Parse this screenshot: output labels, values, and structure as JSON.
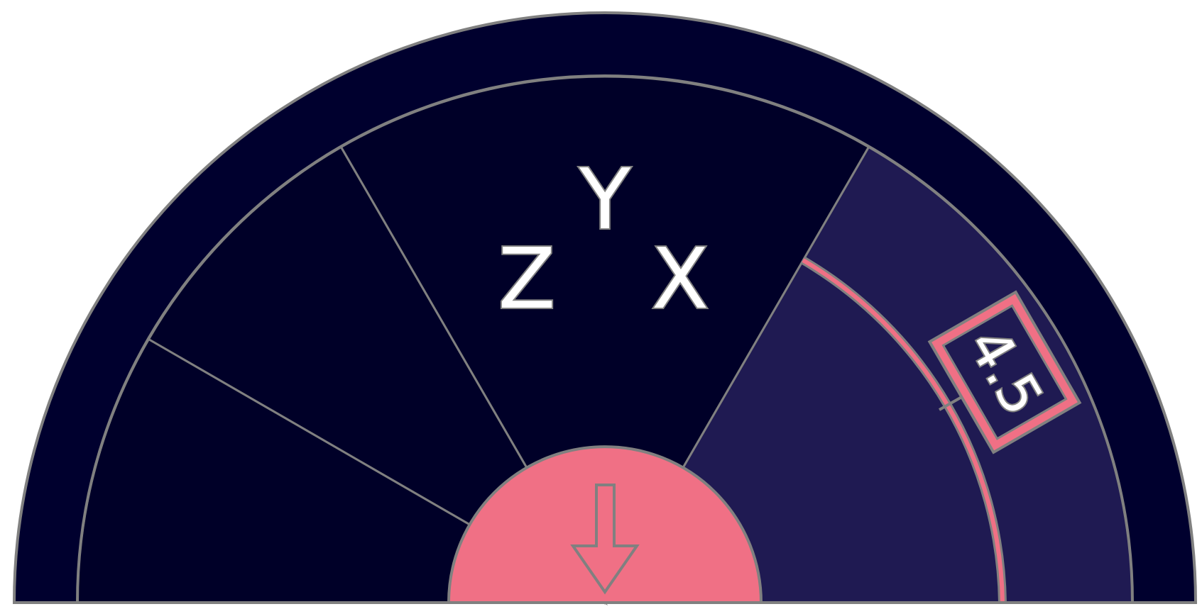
{
  "dial": {
    "axis_labels": [
      "Z",
      "Y",
      "X"
    ],
    "value_label": "4.5",
    "active_segment": "right",
    "center_button_icon": "arrow-down-icon"
  },
  "colors": {
    "outer_ring": "#00002e",
    "segment": "#000028",
    "segment_active": "#1f1a52",
    "accent": "#f07085",
    "outline": "#808080",
    "text": "#ffffff"
  }
}
